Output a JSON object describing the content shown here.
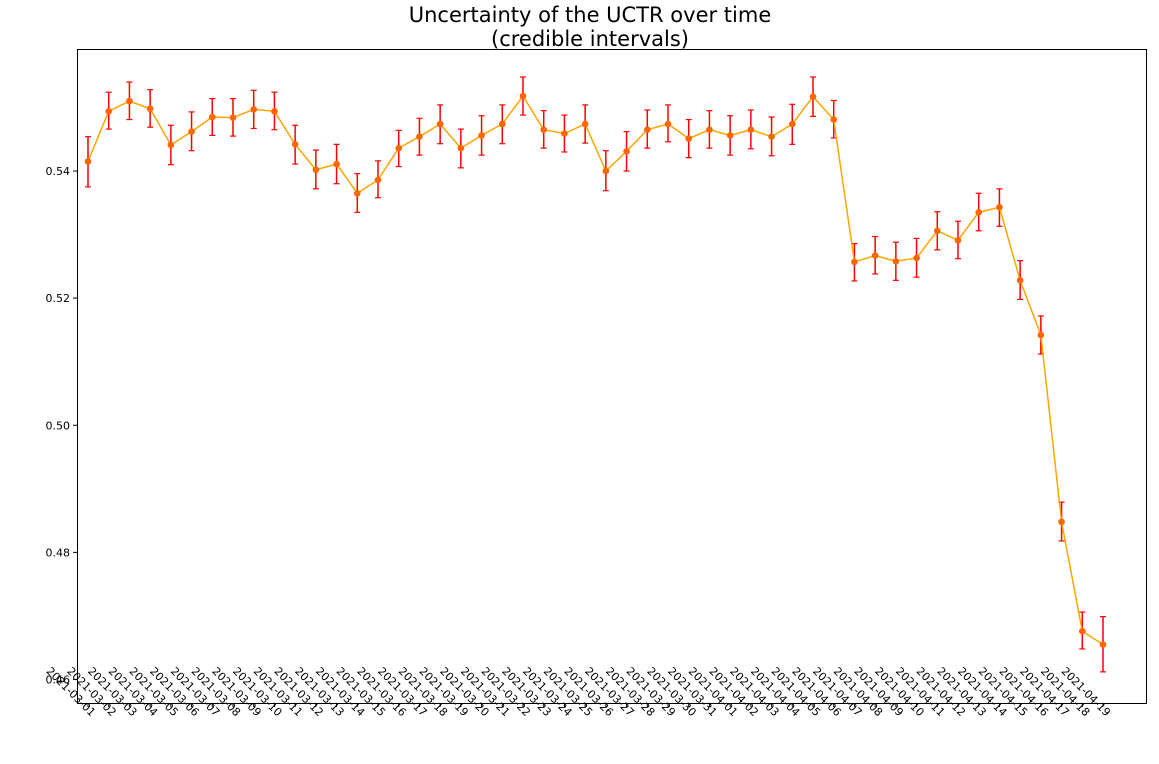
{
  "chart_data": {
    "type": "line",
    "title_line1": "Uncertainty of the UCTR over time",
    "title_line2": "(credible intervals)",
    "xlabel": "",
    "ylabel": "",
    "ylim": [
      0.4563,
      0.5592
    ],
    "yticks": [
      0.46,
      0.48,
      0.5,
      0.52,
      0.54
    ],
    "ytick_labels": [
      "0.46",
      "0.48",
      "0.50",
      "0.52",
      "0.54"
    ],
    "grid": false,
    "error_bars": true,
    "colors": {
      "line": "#FFA500",
      "marker": "#FF6600",
      "errorbar": "#FF0000"
    },
    "categories": [
      "2021-03-01",
      "2021-03-02",
      "2021-03-03",
      "2021-03-04",
      "2021-03-05",
      "2021-03-06",
      "2021-03-07",
      "2021-03-08",
      "2021-03-09",
      "2021-03-10",
      "2021-03-11",
      "2021-03-12",
      "2021-03-13",
      "2021-03-14",
      "2021-03-15",
      "2021-03-16",
      "2021-03-17",
      "2021-03-18",
      "2021-03-19",
      "2021-03-20",
      "2021-03-21",
      "2021-03-22",
      "2021-03-23",
      "2021-03-24",
      "2021-03-25",
      "2021-03-26",
      "2021-03-27",
      "2021-03-28",
      "2021-03-29",
      "2021-03-30",
      "2021-03-31",
      "2021-04-01",
      "2021-04-02",
      "2021-04-03",
      "2021-04-04",
      "2021-04-05",
      "2021-04-06",
      "2021-04-07",
      "2021-04-08",
      "2021-04-09",
      "2021-04-10",
      "2021-04-11",
      "2021-04-12",
      "2021-04-13",
      "2021-04-14",
      "2021-04-15",
      "2021-04-16",
      "2021-04-17",
      "2021-04-18",
      "2021-04-19"
    ],
    "series": [
      {
        "values": [
          0.5415,
          0.5494,
          0.551,
          0.5498,
          0.5441,
          0.5462,
          0.5485,
          0.5484,
          0.5497,
          0.5494,
          0.5442,
          0.5402,
          0.5411,
          0.5365,
          0.5386,
          0.5436,
          0.5454,
          0.5474,
          0.5436,
          0.5456,
          0.5474,
          0.5518,
          0.5465,
          0.5459,
          0.5474,
          0.54,
          0.5431,
          0.5465,
          0.5474,
          0.5451,
          0.5465,
          0.5456,
          0.5465,
          0.5454,
          0.5474,
          0.5517,
          0.5481,
          0.5257,
          0.5267,
          0.5258,
          0.5263,
          0.5306,
          0.5291,
          0.5335,
          0.5343,
          0.5228,
          0.5142,
          0.4848,
          0.4676,
          0.4655
        ],
        "lower": [
          0.5375,
          0.5466,
          0.5481,
          0.5469,
          0.541,
          0.5432,
          0.5456,
          0.5455,
          0.5467,
          0.5465,
          0.5411,
          0.5372,
          0.538,
          0.5335,
          0.5358,
          0.5407,
          0.5425,
          0.5443,
          0.5405,
          0.5425,
          0.5443,
          0.5488,
          0.5436,
          0.543,
          0.5444,
          0.5369,
          0.54,
          0.5436,
          0.5446,
          0.5421,
          0.5436,
          0.5425,
          0.5435,
          0.5424,
          0.5442,
          0.5486,
          0.5452,
          0.5227,
          0.5238,
          0.5228,
          0.5233,
          0.5276,
          0.5262,
          0.5306,
          0.5313,
          0.5198,
          0.5112,
          0.4818,
          0.4648,
          0.4612
        ],
        "upper": [
          0.5454,
          0.5524,
          0.554,
          0.5528,
          0.5472,
          0.5493,
          0.5514,
          0.5514,
          0.5527,
          0.5524,
          0.5472,
          0.5433,
          0.5442,
          0.5396,
          0.5416,
          0.5464,
          0.5483,
          0.5504,
          0.5466,
          0.5487,
          0.5504,
          0.5548,
          0.5495,
          0.5488,
          0.5504,
          0.5432,
          0.5462,
          0.5496,
          0.5504,
          0.5481,
          0.5495,
          0.5487,
          0.5496,
          0.5485,
          0.5505,
          0.5548,
          0.5511,
          0.5286,
          0.5297,
          0.5288,
          0.5294,
          0.5336,
          0.5321,
          0.5365,
          0.5372,
          0.5259,
          0.5172,
          0.4879,
          0.4706,
          0.4699
        ]
      }
    ]
  }
}
